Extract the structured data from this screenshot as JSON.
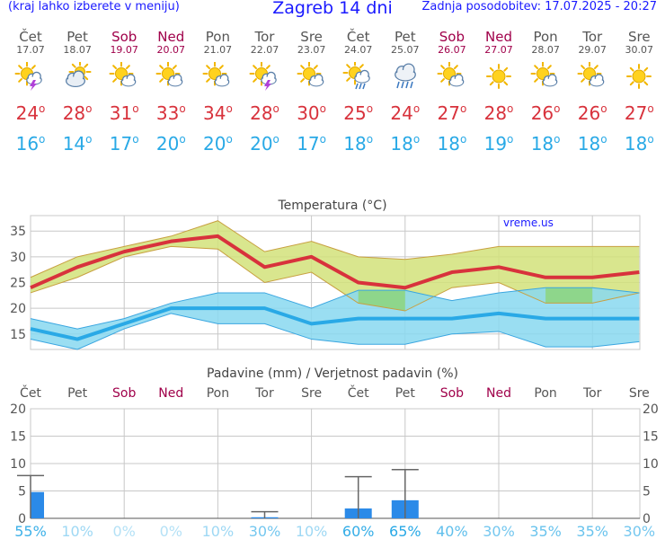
{
  "header": {
    "menu_hint": "(kraj lahko izberete v meniju)",
    "title": "Zagreb 14 dni",
    "last_update": "Zadnja posodobitev: 17.07.2025 - 20:27"
  },
  "degree_symbol": "o",
  "days": [
    {
      "name": "Čet",
      "date": "17.07",
      "weekend": false,
      "icon": "sun-cloud-lightning-icon",
      "high": "24",
      "low": "16"
    },
    {
      "name": "Pet",
      "date": "18.07",
      "weekend": false,
      "icon": "partly-cloudy-icon",
      "high": "28",
      "low": "14"
    },
    {
      "name": "Sob",
      "date": "19.07",
      "weekend": true,
      "icon": "sun-small-cloud-icon",
      "high": "31",
      "low": "17"
    },
    {
      "name": "Ned",
      "date": "20.07",
      "weekend": true,
      "icon": "sun-small-cloud-icon",
      "high": "33",
      "low": "20"
    },
    {
      "name": "Pon",
      "date": "21.07",
      "weekend": false,
      "icon": "sun-small-cloud-icon",
      "high": "34",
      "low": "20"
    },
    {
      "name": "Tor",
      "date": "22.07",
      "weekend": false,
      "icon": "sun-cloud-lightning-icon",
      "high": "28",
      "low": "20"
    },
    {
      "name": "Sre",
      "date": "23.07",
      "weekend": false,
      "icon": "sun-small-cloud-icon",
      "high": "30",
      "low": "17"
    },
    {
      "name": "Čet",
      "date": "24.07",
      "weekend": false,
      "icon": "sun-cloud-rain-icon",
      "high": "25",
      "low": "18"
    },
    {
      "name": "Pet",
      "date": "25.07",
      "weekend": false,
      "icon": "cloud-rain-icon",
      "high": "24",
      "low": "18"
    },
    {
      "name": "Sob",
      "date": "26.07",
      "weekend": true,
      "icon": "sun-small-cloud-icon",
      "high": "27",
      "low": "18"
    },
    {
      "name": "Ned",
      "date": "27.07",
      "weekend": true,
      "icon": "sun-icon",
      "high": "28",
      "low": "19"
    },
    {
      "name": "Pon",
      "date": "28.07",
      "weekend": false,
      "icon": "sun-small-cloud-icon",
      "high": "26",
      "low": "18"
    },
    {
      "name": "Tor",
      "date": "29.07",
      "weekend": false,
      "icon": "sun-small-cloud-icon",
      "high": "26",
      "low": "18"
    },
    {
      "name": "Sre",
      "date": "30.07",
      "weekend": false,
      "icon": "sun-icon",
      "high": "27",
      "low": "18"
    }
  ],
  "colors": {
    "high": "#d8323c",
    "low": "#29a9e6",
    "high_band": "#d2e27a",
    "low_band": "#88d8f0",
    "overlap": "#8ed68b",
    "precip_bar": "#2b8ae8",
    "weekend": "#a0004a",
    "grid": "#c8c8c8"
  },
  "chart_data": [
    {
      "type": "line",
      "title": "Temperatura (°C)",
      "watermark": "vreme.us",
      "categories": [
        "17.07",
        "18.07",
        "19.07",
        "20.07",
        "21.07",
        "22.07",
        "23.07",
        "24.07",
        "25.07",
        "26.07",
        "27.07",
        "28.07",
        "29.07",
        "30.07"
      ],
      "ylim": [
        12,
        38
      ],
      "yticks": [
        15,
        20,
        25,
        30,
        35
      ],
      "grid": true,
      "series": [
        {
          "values": [
            24,
            28,
            31,
            33,
            34,
            28,
            30,
            25,
            24,
            27,
            28,
            26,
            26,
            27
          ],
          "band_low": [
            23,
            26,
            30,
            32,
            31.5,
            25,
            27,
            21,
            19.5,
            24,
            25,
            21,
            21,
            23
          ],
          "band_high": [
            26,
            30,
            32,
            34,
            37,
            31,
            33,
            30,
            29.5,
            30.5,
            32,
            32,
            32,
            32
          ]
        },
        {
          "values": [
            16,
            14,
            17,
            20,
            20,
            20,
            17,
            18,
            18,
            18,
            19,
            18,
            18,
            18
          ],
          "band_low": [
            14,
            12,
            16,
            19,
            17,
            17,
            14,
            13,
            13,
            15,
            15.5,
            12.5,
            12.5,
            13.5
          ],
          "band_high": [
            18,
            16,
            18,
            21,
            23,
            23,
            20,
            23.5,
            23.5,
            21.5,
            23,
            24,
            24,
            23
          ]
        }
      ]
    },
    {
      "type": "bar",
      "title": "Padavine (mm) / Verjetnost padavin (%)",
      "day_labels": [
        "Čet",
        "Pet",
        "Sob",
        "Ned",
        "Pon",
        "Tor",
        "Sre",
        "Čet",
        "Pet",
        "Sob",
        "Ned",
        "Pon",
        "Tor",
        "Sre"
      ],
      "ylim": [
        0,
        20
      ],
      "yticks": [
        0,
        5,
        10,
        15,
        20
      ],
      "grid": true,
      "values": [
        4.8,
        0,
        0,
        0,
        0,
        0.2,
        0,
        1.8,
        3.3,
        0,
        0,
        0,
        0,
        0
      ],
      "error_high": [
        7.8,
        0,
        0,
        0,
        0,
        1.2,
        0,
        7.6,
        8.9,
        0,
        0,
        0,
        0,
        0
      ],
      "probability": [
        "55%",
        "10%",
        "0%",
        "0%",
        "10%",
        "30%",
        "10%",
        "60%",
        "65%",
        "40%",
        "30%",
        "35%",
        "35%",
        "30%"
      ]
    }
  ]
}
